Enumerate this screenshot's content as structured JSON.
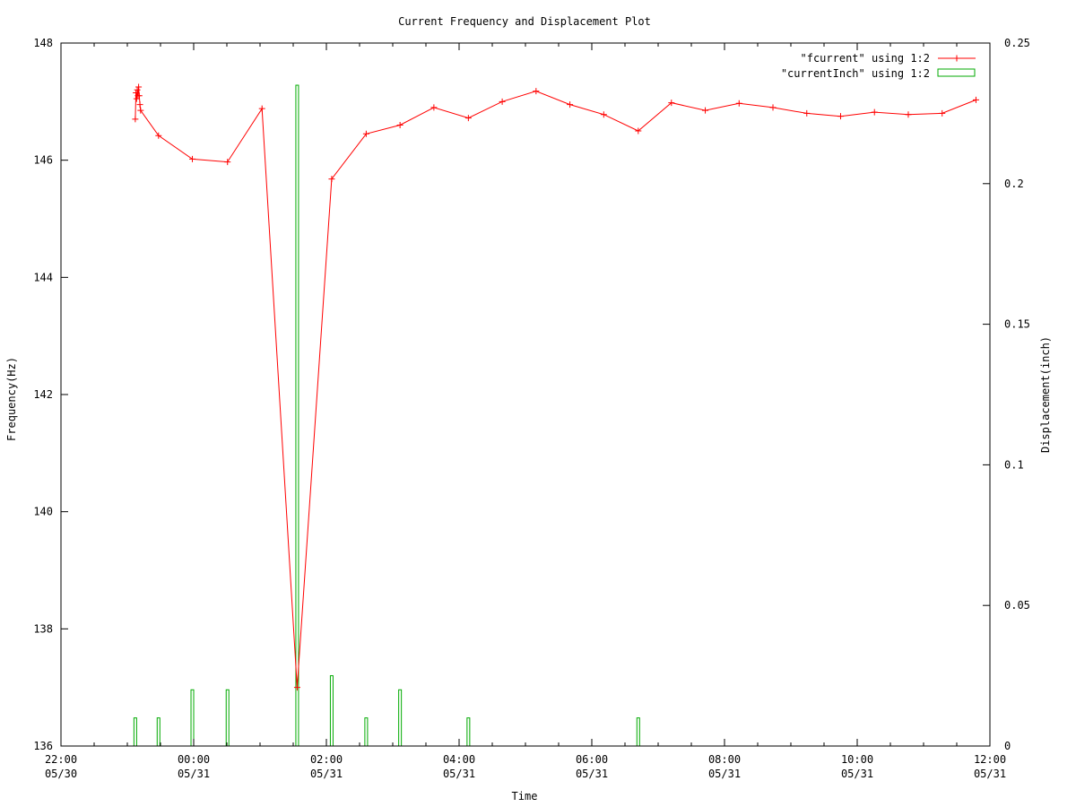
{
  "chart_data": {
    "type": "line",
    "title": "Current Frequency and Displacement Plot",
    "xlabel": "Time",
    "ylabel": "Frequency(Hz)",
    "y2label": "Displacement(inch)",
    "xlim": [
      -2,
      12
    ],
    "ylim": [
      136,
      148
    ],
    "y2lim": [
      0,
      0.25
    ],
    "x_ticks": [
      {
        "x": -2,
        "line1": "22:00",
        "line2": "05/30"
      },
      {
        "x": 0,
        "line1": "00:00",
        "line2": "05/31"
      },
      {
        "x": 2,
        "line1": "02:00",
        "line2": "05/31"
      },
      {
        "x": 4,
        "line1": "04:00",
        "line2": "05/31"
      },
      {
        "x": 6,
        "line1": "06:00",
        "line2": "05/31"
      },
      {
        "x": 8,
        "line1": "08:00",
        "line2": "05/31"
      },
      {
        "x": 10,
        "line1": "10:00",
        "line2": "05/31"
      },
      {
        "x": 12,
        "line1": "12:00",
        "line2": "05/31"
      }
    ],
    "y_ticks": [
      136,
      138,
      140,
      142,
      144,
      146,
      148
    ],
    "y2_ticks": [
      "0",
      "0.05",
      "0.1",
      "0.15",
      "0.2",
      "0.25"
    ],
    "grid": false,
    "legend_position": "top-right",
    "series": [
      {
        "name": "\"fcurrent\" using 1:2",
        "style": "linespoints",
        "axis": "y",
        "color": "#ff0000",
        "points": [
          [
            -0.88,
            146.7
          ],
          [
            -0.87,
            147.15
          ],
          [
            -0.86,
            147.05
          ],
          [
            -0.85,
            147.2
          ],
          [
            -0.84,
            147.1
          ],
          [
            -0.83,
            147.25
          ],
          [
            -0.82,
            147.1
          ],
          [
            -0.81,
            146.95
          ],
          [
            -0.8,
            146.85
          ],
          [
            -0.53,
            146.42
          ],
          [
            -0.02,
            146.02
          ],
          [
            0.51,
            145.97
          ],
          [
            1.03,
            146.88
          ],
          [
            1.56,
            137.0
          ],
          [
            2.08,
            145.68
          ],
          [
            2.6,
            146.45
          ],
          [
            3.11,
            146.6
          ],
          [
            3.62,
            146.9
          ],
          [
            4.14,
            146.72
          ],
          [
            4.65,
            147.0
          ],
          [
            5.16,
            147.18
          ],
          [
            5.67,
            146.95
          ],
          [
            6.18,
            146.78
          ],
          [
            6.7,
            146.5
          ],
          [
            7.2,
            146.98
          ],
          [
            7.71,
            146.85
          ],
          [
            8.22,
            146.97
          ],
          [
            8.73,
            146.9
          ],
          [
            9.24,
            146.8
          ],
          [
            9.75,
            146.75
          ],
          [
            10.26,
            146.82
          ],
          [
            10.77,
            146.78
          ],
          [
            11.28,
            146.8
          ],
          [
            11.79,
            147.03
          ]
        ]
      },
      {
        "name": "\"currentInch\" using 1:2",
        "style": "bars",
        "axis": "y2",
        "color": "#00aa00",
        "points": [
          [
            -0.88,
            0.01
          ],
          [
            -0.53,
            0.01
          ],
          [
            -0.02,
            0.02
          ],
          [
            0.51,
            0.02
          ],
          [
            1.56,
            0.235
          ],
          [
            2.08,
            0.025
          ],
          [
            2.6,
            0.01
          ],
          [
            3.11,
            0.02
          ],
          [
            4.14,
            0.01
          ],
          [
            6.7,
            0.01
          ]
        ]
      }
    ]
  }
}
